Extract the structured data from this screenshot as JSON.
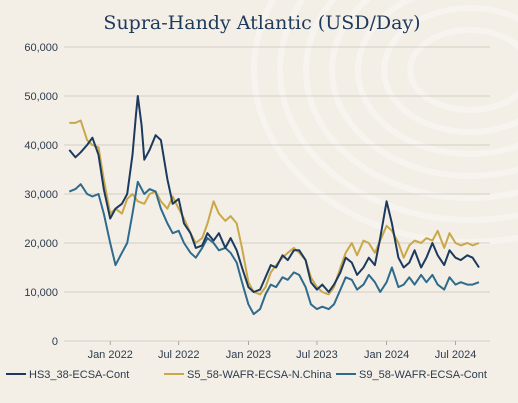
{
  "chart_data": {
    "type": "line",
    "title": "Supra-Handy Atlantic (USD/Day)",
    "xlabel": "",
    "ylabel": "",
    "ylim": [
      0,
      60000
    ],
    "yticks": [
      "0",
      "10,000",
      "20,000",
      "30,000",
      "40,000",
      "50,000",
      "60,000"
    ],
    "xticks": [
      {
        "label": "Jan 2022",
        "date": "2022-01-01"
      },
      {
        "label": "Jul 2022",
        "date": "2022-07-01"
      },
      {
        "label": "Jan 2023",
        "date": "2023-01-01"
      },
      {
        "label": "Jul 2023",
        "date": "2023-07-01"
      },
      {
        "label": "Jan 2024",
        "date": "2024-01-01"
      },
      {
        "label": "Jul 2024",
        "date": "2024-07-01"
      }
    ],
    "xlim": [
      "2021-09-01",
      "2024-09-30"
    ],
    "grid": true,
    "legend": "bottom",
    "series": [
      {
        "name": "HS3_38-ECSA-Cont",
        "color": "#1c3a5e",
        "points": [
          [
            "2021-09-15",
            39000
          ],
          [
            "2021-10-01",
            37500
          ],
          [
            "2021-10-15",
            38500
          ],
          [
            "2021-11-01",
            40000
          ],
          [
            "2021-11-15",
            41500
          ],
          [
            "2021-12-01",
            38000
          ],
          [
            "2021-12-15",
            31000
          ],
          [
            "2022-01-01",
            25000
          ],
          [
            "2022-01-15",
            27000
          ],
          [
            "2022-02-01",
            28000
          ],
          [
            "2022-02-15",
            30000
          ],
          [
            "2022-03-01",
            38000
          ],
          [
            "2022-03-10",
            46000
          ],
          [
            "2022-03-15",
            50000
          ],
          [
            "2022-03-25",
            44000
          ],
          [
            "2022-04-01",
            37000
          ],
          [
            "2022-04-15",
            39000
          ],
          [
            "2022-05-01",
            42000
          ],
          [
            "2022-05-15",
            41000
          ],
          [
            "2022-06-01",
            33000
          ],
          [
            "2022-06-15",
            28000
          ],
          [
            "2022-07-01",
            29000
          ],
          [
            "2022-07-15",
            24000
          ],
          [
            "2022-08-01",
            22000
          ],
          [
            "2022-08-15",
            19000
          ],
          [
            "2022-09-01",
            19500
          ],
          [
            "2022-09-15",
            22000
          ],
          [
            "2022-10-01",
            20500
          ],
          [
            "2022-10-15",
            22000
          ],
          [
            "2022-11-01",
            19000
          ],
          [
            "2022-11-15",
            21000
          ],
          [
            "2022-12-01",
            18500
          ],
          [
            "2022-12-15",
            15000
          ],
          [
            "2023-01-01",
            11000
          ],
          [
            "2023-01-15",
            10000
          ],
          [
            "2023-02-01",
            10500
          ],
          [
            "2023-02-15",
            13000
          ],
          [
            "2023-03-01",
            15500
          ],
          [
            "2023-03-15",
            15000
          ],
          [
            "2023-04-01",
            17500
          ],
          [
            "2023-04-15",
            16500
          ],
          [
            "2023-05-01",
            18500
          ],
          [
            "2023-05-15",
            18500
          ],
          [
            "2023-06-01",
            16500
          ],
          [
            "2023-06-15",
            12000
          ],
          [
            "2023-07-01",
            10500
          ],
          [
            "2023-07-15",
            11500
          ],
          [
            "2023-08-01",
            10000
          ],
          [
            "2023-08-15",
            11500
          ],
          [
            "2023-09-01",
            14000
          ],
          [
            "2023-09-15",
            17000
          ],
          [
            "2023-10-01",
            16000
          ],
          [
            "2023-10-15",
            13500
          ],
          [
            "2023-11-01",
            15000
          ],
          [
            "2023-11-15",
            17000
          ],
          [
            "2023-12-01",
            15500
          ],
          [
            "2023-12-15",
            21000
          ],
          [
            "2024-01-01",
            28500
          ],
          [
            "2024-01-15",
            24000
          ],
          [
            "2024-02-01",
            17000
          ],
          [
            "2024-02-15",
            15000
          ],
          [
            "2024-03-01",
            16000
          ],
          [
            "2024-03-15",
            18500
          ],
          [
            "2024-04-01",
            15000
          ],
          [
            "2024-04-15",
            17000
          ],
          [
            "2024-05-01",
            20000
          ],
          [
            "2024-05-15",
            17500
          ],
          [
            "2024-06-01",
            15500
          ],
          [
            "2024-06-15",
            18500
          ],
          [
            "2024-07-01",
            17000
          ],
          [
            "2024-07-15",
            16500
          ],
          [
            "2024-08-01",
            17500
          ],
          [
            "2024-08-15",
            17000
          ],
          [
            "2024-09-01",
            15000
          ]
        ]
      },
      {
        "name": "S5_58-WAFR-ECSA-N.China",
        "color": "#c9a84a",
        "points": [
          [
            "2021-09-15",
            44500
          ],
          [
            "2021-10-01",
            44500
          ],
          [
            "2021-10-15",
            45000
          ],
          [
            "2021-11-01",
            41000
          ],
          [
            "2021-11-15",
            40000
          ],
          [
            "2021-12-01",
            39500
          ],
          [
            "2021-12-15",
            33000
          ],
          [
            "2022-01-01",
            26000
          ],
          [
            "2022-01-15",
            27000
          ],
          [
            "2022-02-01",
            26000
          ],
          [
            "2022-02-15",
            29000
          ],
          [
            "2022-03-01",
            30000
          ],
          [
            "2022-03-15",
            28500
          ],
          [
            "2022-04-01",
            28000
          ],
          [
            "2022-04-15",
            30000
          ],
          [
            "2022-05-01",
            30500
          ],
          [
            "2022-05-15",
            28500
          ],
          [
            "2022-06-01",
            27000
          ],
          [
            "2022-06-15",
            29500
          ],
          [
            "2022-07-01",
            27000
          ],
          [
            "2022-07-15",
            25000
          ],
          [
            "2022-08-01",
            22000
          ],
          [
            "2022-08-15",
            20000
          ],
          [
            "2022-09-01",
            21000
          ],
          [
            "2022-09-15",
            24000
          ],
          [
            "2022-10-01",
            28500
          ],
          [
            "2022-10-15",
            26000
          ],
          [
            "2022-11-01",
            24500
          ],
          [
            "2022-11-15",
            25500
          ],
          [
            "2022-12-01",
            24000
          ],
          [
            "2022-12-15",
            19000
          ],
          [
            "2023-01-01",
            12000
          ],
          [
            "2023-01-15",
            10000
          ],
          [
            "2023-02-01",
            9500
          ],
          [
            "2023-02-15",
            11000
          ],
          [
            "2023-03-01",
            14000
          ],
          [
            "2023-03-15",
            15500
          ],
          [
            "2023-04-01",
            17000
          ],
          [
            "2023-04-15",
            18000
          ],
          [
            "2023-05-01",
            19000
          ],
          [
            "2023-05-15",
            18000
          ],
          [
            "2023-06-01",
            16500
          ],
          [
            "2023-06-15",
            13000
          ],
          [
            "2023-07-01",
            11000
          ],
          [
            "2023-07-15",
            10000
          ],
          [
            "2023-08-01",
            9500
          ],
          [
            "2023-08-15",
            11000
          ],
          [
            "2023-09-01",
            15000
          ],
          [
            "2023-09-15",
            18000
          ],
          [
            "2023-10-01",
            20000
          ],
          [
            "2023-10-15",
            17500
          ],
          [
            "2023-11-01",
            20500
          ],
          [
            "2023-11-15",
            20000
          ],
          [
            "2023-12-01",
            18000
          ],
          [
            "2023-12-15",
            20500
          ],
          [
            "2024-01-01",
            23500
          ],
          [
            "2024-01-15",
            22500
          ],
          [
            "2024-02-01",
            20000
          ],
          [
            "2024-02-15",
            17000
          ],
          [
            "2024-03-01",
            19500
          ],
          [
            "2024-03-15",
            20500
          ],
          [
            "2024-04-01",
            20000
          ],
          [
            "2024-04-15",
            21000
          ],
          [
            "2024-05-01",
            20500
          ],
          [
            "2024-05-15",
            22500
          ],
          [
            "2024-06-01",
            19000
          ],
          [
            "2024-06-15",
            22000
          ],
          [
            "2024-07-01",
            20000
          ],
          [
            "2024-07-15",
            19500
          ],
          [
            "2024-08-01",
            20000
          ],
          [
            "2024-08-15",
            19500
          ],
          [
            "2024-09-01",
            20000
          ]
        ]
      },
      {
        "name": "S9_58-WAFR-ECSA-Cont",
        "color": "#2f6b8c",
        "points": [
          [
            "2021-09-15",
            30500
          ],
          [
            "2021-10-01",
            31000
          ],
          [
            "2021-10-15",
            32000
          ],
          [
            "2021-11-01",
            30000
          ],
          [
            "2021-11-15",
            29500
          ],
          [
            "2021-12-01",
            30000
          ],
          [
            "2021-12-15",
            26000
          ],
          [
            "2022-01-01",
            20000
          ],
          [
            "2022-01-15",
            15500
          ],
          [
            "2022-02-01",
            18000
          ],
          [
            "2022-02-15",
            20000
          ],
          [
            "2022-03-01",
            26000
          ],
          [
            "2022-03-15",
            32500
          ],
          [
            "2022-04-01",
            30000
          ],
          [
            "2022-04-15",
            31000
          ],
          [
            "2022-05-01",
            30500
          ],
          [
            "2022-05-15",
            27000
          ],
          [
            "2022-06-01",
            24000
          ],
          [
            "2022-06-15",
            22000
          ],
          [
            "2022-07-01",
            22500
          ],
          [
            "2022-07-15",
            20000
          ],
          [
            "2022-08-01",
            18000
          ],
          [
            "2022-08-15",
            17000
          ],
          [
            "2022-09-01",
            19000
          ],
          [
            "2022-09-15",
            21000
          ],
          [
            "2022-10-01",
            20000
          ],
          [
            "2022-10-15",
            18500
          ],
          [
            "2022-11-01",
            19000
          ],
          [
            "2022-11-15",
            18000
          ],
          [
            "2022-12-01",
            16000
          ],
          [
            "2022-12-15",
            12000
          ],
          [
            "2023-01-01",
            7500
          ],
          [
            "2023-01-15",
            5500
          ],
          [
            "2023-02-01",
            6500
          ],
          [
            "2023-02-15",
            9500
          ],
          [
            "2023-03-01",
            11500
          ],
          [
            "2023-03-15",
            11000
          ],
          [
            "2023-04-01",
            13000
          ],
          [
            "2023-04-15",
            12500
          ],
          [
            "2023-05-01",
            14000
          ],
          [
            "2023-05-15",
            13500
          ],
          [
            "2023-06-01",
            11000
          ],
          [
            "2023-06-15",
            7500
          ],
          [
            "2023-07-01",
            6500
          ],
          [
            "2023-07-15",
            7000
          ],
          [
            "2023-08-01",
            6500
          ],
          [
            "2023-08-15",
            7500
          ],
          [
            "2023-09-01",
            10500
          ],
          [
            "2023-09-15",
            13000
          ],
          [
            "2023-10-01",
            12500
          ],
          [
            "2023-10-15",
            10500
          ],
          [
            "2023-11-01",
            11500
          ],
          [
            "2023-11-15",
            13500
          ],
          [
            "2023-12-01",
            12000
          ],
          [
            "2023-12-15",
            10000
          ],
          [
            "2024-01-01",
            12000
          ],
          [
            "2024-01-15",
            15000
          ],
          [
            "2024-02-01",
            11000
          ],
          [
            "2024-02-15",
            11500
          ],
          [
            "2024-03-01",
            13000
          ],
          [
            "2024-03-15",
            11500
          ],
          [
            "2024-04-01",
            13500
          ],
          [
            "2024-04-15",
            12000
          ],
          [
            "2024-05-01",
            13500
          ],
          [
            "2024-05-15",
            11500
          ],
          [
            "2024-06-01",
            10500
          ],
          [
            "2024-06-15",
            13000
          ],
          [
            "2024-07-01",
            11500
          ],
          [
            "2024-07-15",
            12000
          ],
          [
            "2024-08-01",
            11500
          ],
          [
            "2024-08-15",
            11500
          ],
          [
            "2024-09-01",
            12000
          ]
        ]
      }
    ]
  }
}
